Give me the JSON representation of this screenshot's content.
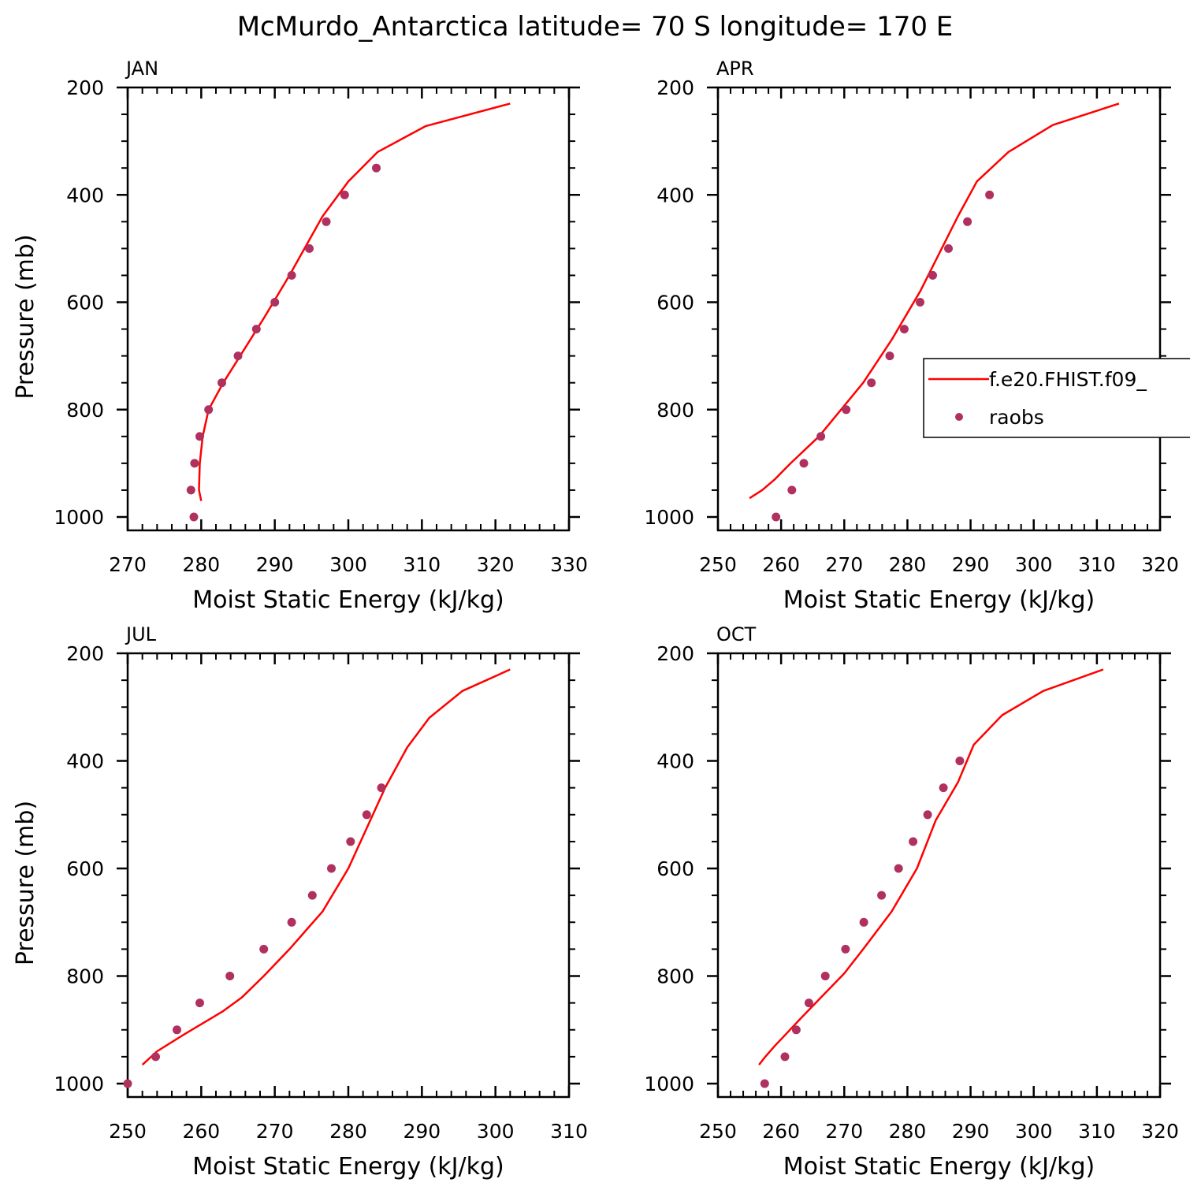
{
  "title": "McMurdo_Antarctica  latitude= 70 S longitude= 170 E",
  "colors": {
    "model": "#ff0000",
    "obs": "#b03060",
    "axis": "#000000"
  },
  "legend": {
    "model_label": "f.e20.FHIST.f09_",
    "obs_label": "raobs",
    "placement": "right, APR panel"
  },
  "chart_data": [
    {
      "type": "line",
      "panel": "JAN",
      "xlabel": "Moist Static Energy (kJ/kg)",
      "ylabel": "Pressure (mb)",
      "xlim": [
        270,
        330
      ],
      "ylim": [
        1000,
        200
      ],
      "xticks": [
        270,
        280,
        290,
        300,
        310,
        320,
        330
      ],
      "yticks": [
        200,
        400,
        600,
        800,
        1000
      ],
      "series": [
        {
          "name": "f.e20.FHIST.f09_",
          "style": "line",
          "points": [
            [
              322,
              230
            ],
            [
              310.5,
              272
            ],
            [
              304,
              320
            ],
            [
              300,
              375
            ],
            [
              296.5,
              440
            ],
            [
              292,
              550
            ],
            [
              288.5,
              630
            ],
            [
              283,
              750
            ],
            [
              281,
              800
            ],
            [
              280.2,
              850
            ],
            [
              279.8,
              900
            ],
            [
              279.7,
              950
            ],
            [
              280,
              970
            ]
          ]
        },
        {
          "name": "raobs",
          "style": "markers",
          "points": [
            [
              303.8,
              350
            ],
            [
              299.5,
              400
            ],
            [
              297,
              450
            ],
            [
              294.7,
              500
            ],
            [
              292.3,
              550
            ],
            [
              290,
              600
            ],
            [
              287.5,
              650
            ],
            [
              285,
              700
            ],
            [
              282.8,
              750
            ],
            [
              281,
              800
            ],
            [
              279.8,
              850
            ],
            [
              279.1,
              900
            ],
            [
              278.6,
              950
            ],
            [
              279,
              1000
            ]
          ]
        }
      ]
    },
    {
      "type": "line",
      "panel": "APR",
      "xlabel": "Moist Static Energy (kJ/kg)",
      "ylabel": "",
      "xlim": [
        250,
        320
      ],
      "ylim": [
        1000,
        200
      ],
      "xticks": [
        250,
        260,
        270,
        280,
        290,
        300,
        310,
        320
      ],
      "yticks": [
        200,
        400,
        600,
        800,
        1000
      ],
      "series": [
        {
          "name": "f.e20.FHIST.f09_",
          "style": "line",
          "points": [
            [
              313.5,
              230
            ],
            [
              303,
              270
            ],
            [
              296,
              320
            ],
            [
              291,
              375
            ],
            [
              288,
              440
            ],
            [
              285,
              510
            ],
            [
              282,
              580
            ],
            [
              277.5,
              670
            ],
            [
              273,
              750
            ],
            [
              266,
              850
            ],
            [
              261.5,
              900
            ],
            [
              259,
              930
            ],
            [
              257,
              950
            ],
            [
              255,
              965
            ]
          ]
        },
        {
          "name": "raobs",
          "style": "markers",
          "points": [
            [
              293,
              400
            ],
            [
              289.5,
              450
            ],
            [
              286.5,
              500
            ],
            [
              284,
              550
            ],
            [
              282,
              600
            ],
            [
              279.5,
              650
            ],
            [
              277.2,
              700
            ],
            [
              274.3,
              750
            ],
            [
              270.3,
              800
            ],
            [
              266.3,
              850
            ],
            [
              263.6,
              900
            ],
            [
              261.7,
              950
            ],
            [
              259.2,
              1000
            ]
          ]
        }
      ]
    },
    {
      "type": "line",
      "panel": "JUL",
      "xlabel": "Moist Static Energy (kJ/kg)",
      "ylabel": "Pressure (mb)",
      "xlim": [
        250,
        310
      ],
      "ylim": [
        1000,
        200
      ],
      "xticks": [
        250,
        260,
        270,
        280,
        290,
        300,
        310
      ],
      "yticks": [
        200,
        400,
        600,
        800,
        1000
      ],
      "series": [
        {
          "name": "f.e20.FHIST.f09_",
          "style": "line",
          "points": [
            [
              302,
              230
            ],
            [
              295.5,
              270
            ],
            [
              291,
              320
            ],
            [
              288,
              375
            ],
            [
              285,
              450
            ],
            [
              280,
              600
            ],
            [
              276.5,
              680
            ],
            [
              272,
              750
            ],
            [
              268.5,
              800
            ],
            [
              265.5,
              840
            ],
            [
              263,
              865
            ],
            [
              257.5,
              910
            ],
            [
              254,
              940
            ],
            [
              252,
              965
            ]
          ]
        },
        {
          "name": "raobs",
          "style": "markers",
          "points": [
            [
              284.5,
              450
            ],
            [
              282.5,
              500
            ],
            [
              280.3,
              550
            ],
            [
              277.7,
              600
            ],
            [
              275.1,
              650
            ],
            [
              272.3,
              700
            ],
            [
              268.5,
              750
            ],
            [
              263.9,
              800
            ],
            [
              259.8,
              850
            ],
            [
              256.7,
              900
            ],
            [
              253.8,
              950
            ],
            [
              250,
              1000
            ]
          ]
        }
      ]
    },
    {
      "type": "line",
      "panel": "OCT",
      "xlabel": "Moist Static Energy (kJ/kg)",
      "ylabel": "",
      "xlim": [
        250,
        320
      ],
      "ylim": [
        1000,
        200
      ],
      "xticks": [
        250,
        260,
        270,
        280,
        290,
        300,
        310,
        320
      ],
      "yticks": [
        200,
        400,
        600,
        800,
        1000
      ],
      "series": [
        {
          "name": "f.e20.FHIST.f09_",
          "style": "line",
          "points": [
            [
              311,
              230
            ],
            [
              301.5,
              270
            ],
            [
              295,
              315
            ],
            [
              290.5,
              370
            ],
            [
              288,
              440
            ],
            [
              284.5,
              510
            ],
            [
              281.5,
              600
            ],
            [
              277.5,
              680
            ],
            [
              273,
              750
            ],
            [
              270,
              795
            ],
            [
              263,
              880
            ],
            [
              261,
              905
            ],
            [
              259,
              930
            ],
            [
              257.5,
              950
            ],
            [
              256.5,
              965
            ]
          ]
        },
        {
          "name": "raobs",
          "style": "markers",
          "points": [
            [
              288.3,
              400
            ],
            [
              285.7,
              450
            ],
            [
              283.2,
              500
            ],
            [
              280.9,
              550
            ],
            [
              278.6,
              600
            ],
            [
              275.9,
              650
            ],
            [
              273.1,
              700
            ],
            [
              270.2,
              750
            ],
            [
              267,
              800
            ],
            [
              264.4,
              850
            ],
            [
              262.4,
              900
            ],
            [
              260.6,
              950
            ],
            [
              257.4,
              1000
            ]
          ]
        }
      ]
    }
  ]
}
